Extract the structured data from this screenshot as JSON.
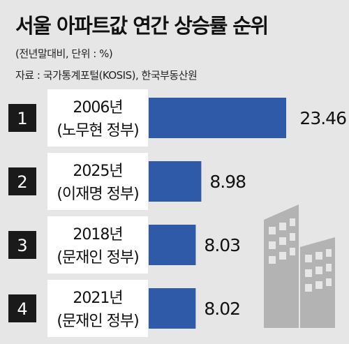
{
  "title": "서울 아파트값 연간 상승률 순위",
  "unit_note": "(전년말대비, 단위 : %)",
  "source": "자료 : 국가통계포털(KOSIS), 한국부동산원",
  "colors": {
    "bar": "#2f5aa8",
    "rank_box": "#1a1a1a",
    "label_box": "#ffffff",
    "background": "#e6e6e6",
    "building": "#b3b3b3"
  },
  "chart_data": {
    "type": "bar",
    "orientation": "horizontal",
    "title": "서울 아파트값 연간 상승률 순위",
    "categories": [
      "2006년 (노무현 정부)",
      "2025년 (이재명 정부)",
      "2018년 (문재인 정부)",
      "2021년 (문재인 정부)"
    ],
    "ranks": [
      "1",
      "2",
      "3",
      "4"
    ],
    "years": [
      "2006년",
      "2025년",
      "2018년",
      "2021년"
    ],
    "governments": [
      "(노무현 정부)",
      "(이재명 정부)",
      "(문재인 정부)",
      "(문재인 정부)"
    ],
    "values": [
      23.46,
      8.98,
      8.03,
      8.02
    ],
    "value_labels": [
      "23.46",
      "8.98",
      "8.03",
      "8.02"
    ],
    "xlim": [
      0,
      23.46
    ]
  }
}
